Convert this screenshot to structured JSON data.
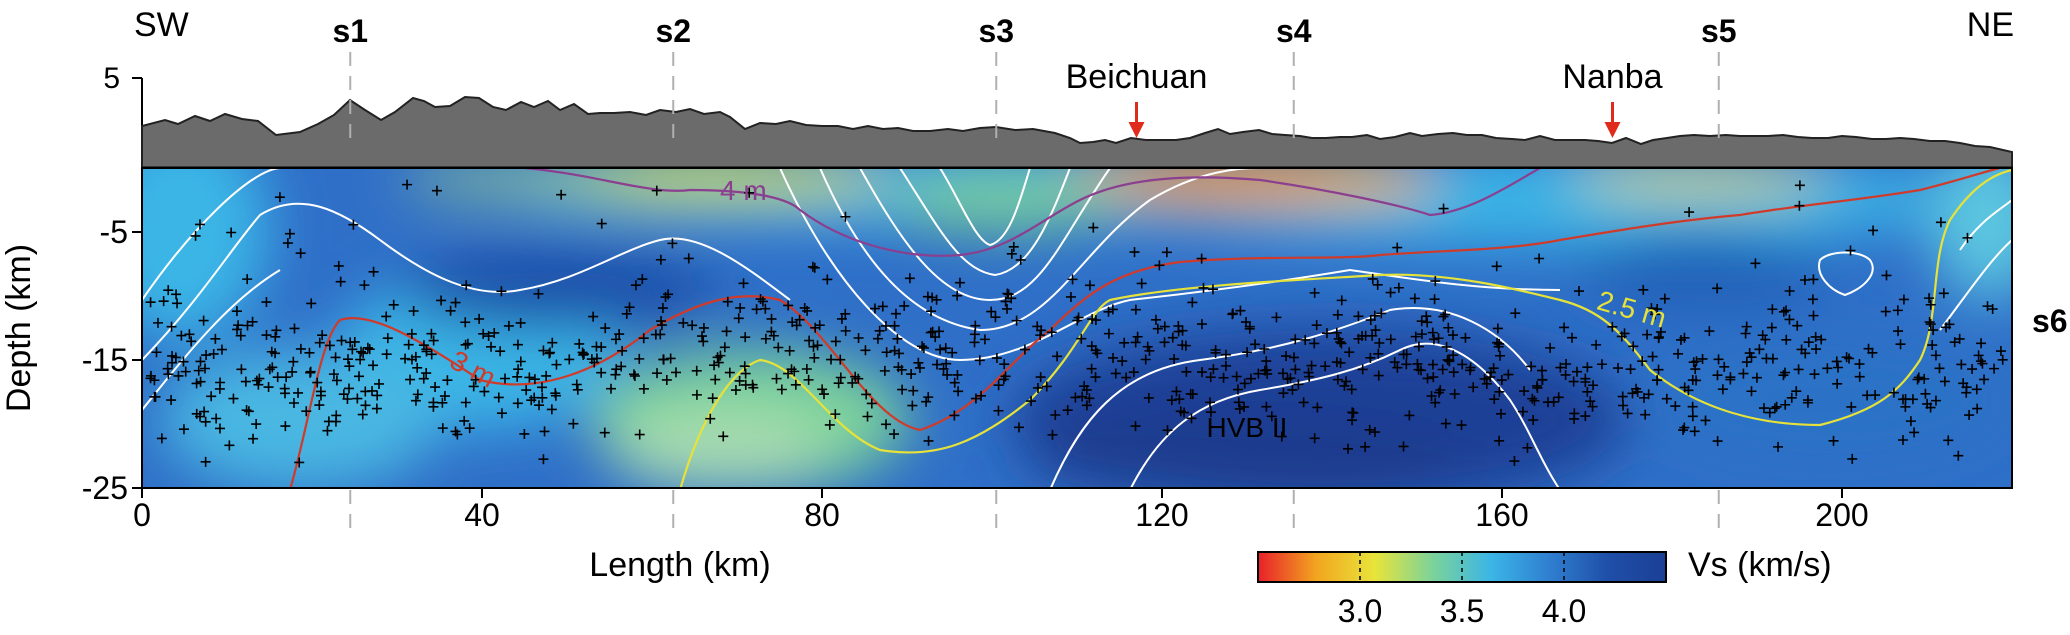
{
  "chart_data": {
    "type": "heatmap",
    "title": "",
    "orientation_left": "SW",
    "orientation_right": "NE",
    "section_markers": [
      {
        "label": "s1",
        "x_km": 24.5
      },
      {
        "label": "s2",
        "x_km": 62.5
      },
      {
        "label": "s3",
        "x_km": 100.5
      },
      {
        "label": "s4",
        "x_km": 135.5
      },
      {
        "label": "s5",
        "x_km": 185.5
      },
      {
        "label": "s6",
        "x_km": 224
      }
    ],
    "places": [
      {
        "label": "Beichuan",
        "x_km": 117
      },
      {
        "label": "Nanba",
        "x_km": 173
      }
    ],
    "elevation_tick": "5",
    "x_axis": {
      "label": "Length (km)",
      "range": [
        0,
        220
      ],
      "ticks": [
        0,
        40,
        80,
        120,
        160,
        200
      ]
    },
    "y_axis": {
      "label": "Depth (km)",
      "range": [
        -25,
        0
      ],
      "ticks": [
        -5,
        -15,
        -25
      ]
    },
    "colorbar": {
      "label": "Vs (km/s)",
      "range": [
        2.5,
        4.5
      ],
      "ticks": [
        3.0,
        3.5,
        4.0
      ],
      "colors": [
        "#e8202a",
        "#f2a51f",
        "#e8e43a",
        "#7bd39a",
        "#3bb5e6",
        "#2f7fd0",
        "#1f4fa8",
        "#1b3f96"
      ]
    },
    "contour_labels": [
      {
        "text": "4 m",
        "x_km": 68,
        "depth_km": -2.5,
        "color": "#8a3f8f"
      },
      {
        "text": "3 m",
        "x_km": 36,
        "depth_km": -15.5,
        "color": "#d03a2a"
      },
      {
        "text": "2.5 m",
        "x_km": 171,
        "depth_km": -11,
        "color": "#e6e23a"
      }
    ],
    "anomaly_label": {
      "text": "HVB II",
      "x_km": 130,
      "depth_km": -21
    },
    "earthquake_band_depth_km": [
      -10,
      -22
    ]
  }
}
